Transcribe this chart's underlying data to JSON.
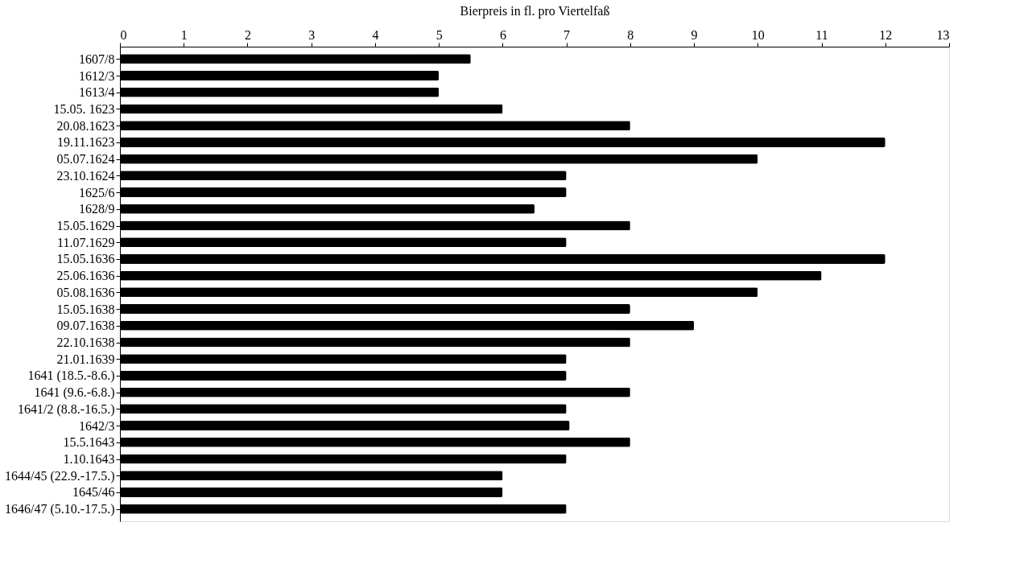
{
  "chart_data": {
    "type": "bar",
    "orientation": "horizontal",
    "xlabel": "Bierpreis in fl. pro Viertelfaß",
    "categories": [
      "1607/8",
      "1612/3",
      "1613/4",
      "15.05. 1623",
      "20.08.1623",
      "19.11.1623",
      "05.07.1624",
      "23.10.1624",
      "1625/6",
      "1628/9",
      "15.05.1629",
      "11.07.1629",
      "15.05.1636",
      "25.06.1636",
      "05.08.1636",
      "15.05.1638",
      "09.07.1638",
      "22.10.1638",
      "21.01.1639",
      "1641 (18.5.-8.6.)",
      "1641 (9.6.-6.8.)",
      "1641/2 (8.8.-16.5.)",
      "1642/3",
      "15.5.1643",
      "1.10.1643",
      "1644/45 (22.9.-17.5.)",
      "1645/46",
      "1646/47 (5.10.-17.5.)"
    ],
    "values": [
      5.5,
      5,
      5,
      6,
      8,
      12,
      10,
      7,
      7,
      6.5,
      8,
      7,
      12,
      11,
      10,
      8,
      9,
      8,
      7,
      7,
      8,
      7,
      7.05,
      8,
      7,
      6,
      6,
      7
    ],
    "color": "#000000",
    "xlim": [
      0,
      13
    ],
    "xticks": [
      0,
      1,
      2,
      3,
      4,
      5,
      6,
      7,
      8,
      9,
      10,
      11,
      12,
      13
    ],
    "grid": false
  }
}
